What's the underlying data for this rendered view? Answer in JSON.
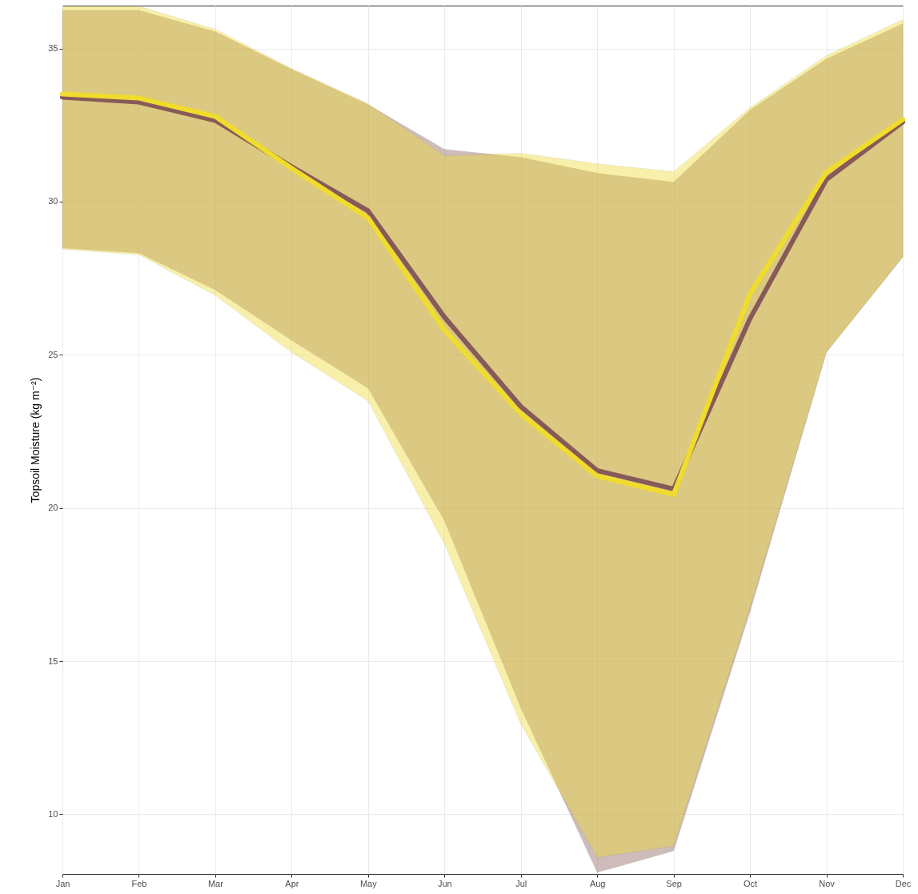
{
  "chart_data": {
    "type": "line",
    "ylabel": "Topsoil Moisture (kg m⁻²)",
    "categories": [
      "Jan",
      "Feb",
      "Mar",
      "Apr",
      "May",
      "Jun",
      "Jul",
      "Aug",
      "Sep",
      "Oct",
      "Nov",
      "Dec"
    ],
    "series": [
      {
        "color": "#875a58",
        "values": [
          33.41,
          33.25,
          32.65,
          31.14,
          29.7,
          26.23,
          23.31,
          21.22,
          20.62,
          26.18,
          30.72,
          32.6
        ],
        "lower": [
          28.48,
          28.32,
          27.12,
          25.47,
          23.91,
          19.58,
          13.47,
          8.1,
          8.8,
          16.6,
          25.08,
          28.19
        ],
        "upper": [
          36.25,
          36.25,
          35.55,
          34.32,
          33.17,
          31.71,
          31.45,
          30.93,
          30.64,
          32.99,
          34.66,
          35.81
        ]
      },
      {
        "color": "#f0dc2c",
        "values": [
          33.51,
          33.38,
          32.78,
          31.09,
          29.47,
          25.81,
          23.07,
          21.04,
          20.44,
          26.99,
          30.96,
          32.68
        ],
        "lower": [
          28.45,
          28.27,
          26.94,
          25.08,
          23.49,
          18.82,
          12.95,
          8.59,
          8.96,
          16.73,
          25.08,
          28.19
        ],
        "upper": [
          36.38,
          36.38,
          35.63,
          34.35,
          33.2,
          31.5,
          31.58,
          31.24,
          30.98,
          33.07,
          34.77,
          35.94
        ]
      }
    ],
    "ylim": [
      8.05,
      36.4
    ],
    "yticks": [
      10,
      15,
      20,
      25,
      30,
      35
    ],
    "grid": true,
    "line_style": "solid"
  }
}
